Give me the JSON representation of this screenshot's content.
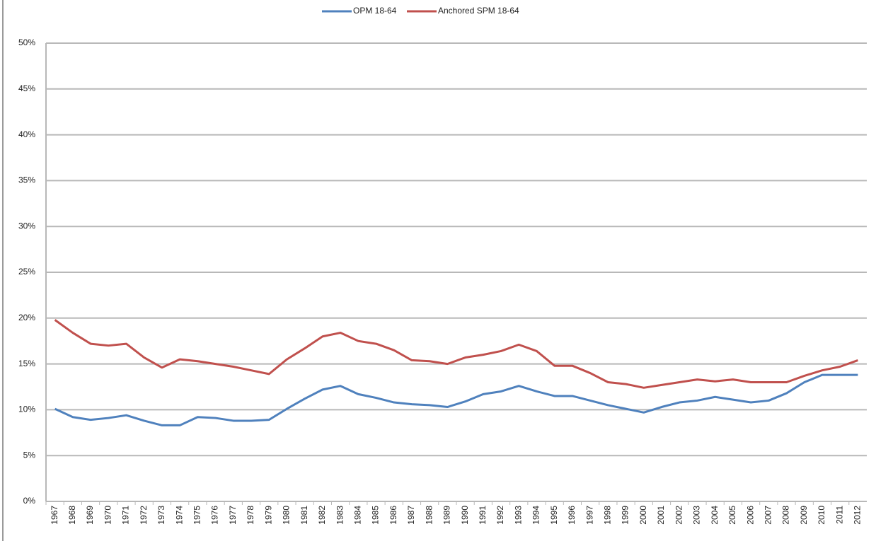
{
  "chart_data": {
    "type": "line",
    "categories": [
      "1967",
      "1968",
      "1969",
      "1970",
      "1971",
      "1972",
      "1973",
      "1974",
      "1975",
      "1976",
      "1977",
      "1978",
      "1979",
      "1980",
      "1981",
      "1982",
      "1983",
      "1984",
      "1985",
      "1986",
      "1987",
      "1988",
      "1989",
      "1990",
      "1991",
      "1992",
      "1993",
      "1994",
      "1995",
      "1996",
      "1997",
      "1998",
      "1999",
      "2000",
      "2001",
      "2002",
      "2003",
      "2004",
      "2005",
      "2006",
      "2007",
      "2008",
      "2009",
      "2010",
      "2011",
      "2012"
    ],
    "series": [
      {
        "name": "OPM 18-64",
        "color": "#4f81bd",
        "values": [
          10.1,
          9.2,
          8.9,
          9.1,
          9.4,
          8.8,
          8.3,
          8.3,
          9.2,
          9.1,
          8.8,
          8.8,
          8.9,
          10.1,
          11.2,
          12.2,
          12.6,
          11.7,
          11.3,
          10.8,
          10.6,
          10.5,
          10.3,
          10.9,
          11.7,
          12.0,
          12.6,
          12.0,
          11.5,
          11.5,
          11.0,
          10.5,
          10.1,
          9.7,
          10.3,
          10.8,
          11.0,
          11.4,
          11.1,
          10.8,
          11.0,
          11.8,
          13.0,
          13.8,
          13.8,
          13.8
        ]
      },
      {
        "name": "Anchored SPM 18-64",
        "color": "#c0504d",
        "values": [
          19.8,
          18.4,
          17.2,
          17.0,
          17.2,
          15.7,
          14.6,
          15.5,
          15.3,
          15.0,
          14.7,
          14.3,
          13.9,
          15.5,
          16.7,
          18.0,
          18.4,
          17.5,
          17.2,
          16.5,
          15.4,
          15.3,
          15.0,
          15.7,
          16.0,
          16.4,
          17.1,
          16.4,
          14.8,
          14.8,
          14.0,
          13.0,
          12.8,
          12.4,
          12.7,
          13.0,
          13.3,
          13.1,
          13.3,
          13.0,
          13.0,
          13.0,
          13.7,
          14.3,
          14.7,
          15.4
        ]
      }
    ],
    "ylim": [
      0,
      50
    ],
    "yticks": [
      {
        "value": 0,
        "label": "0%"
      },
      {
        "value": 5,
        "label": "5%"
      },
      {
        "value": 10,
        "label": "10%"
      },
      {
        "value": 15,
        "label": "15%"
      },
      {
        "value": 20,
        "label": "20%"
      },
      {
        "value": 25,
        "label": "25%"
      },
      {
        "value": 30,
        "label": "30%"
      },
      {
        "value": 35,
        "label": "35%"
      },
      {
        "value": 40,
        "label": "40%"
      },
      {
        "value": 45,
        "label": "45%"
      },
      {
        "value": 50,
        "label": "50%"
      }
    ],
    "grid": true,
    "legend": "top"
  }
}
